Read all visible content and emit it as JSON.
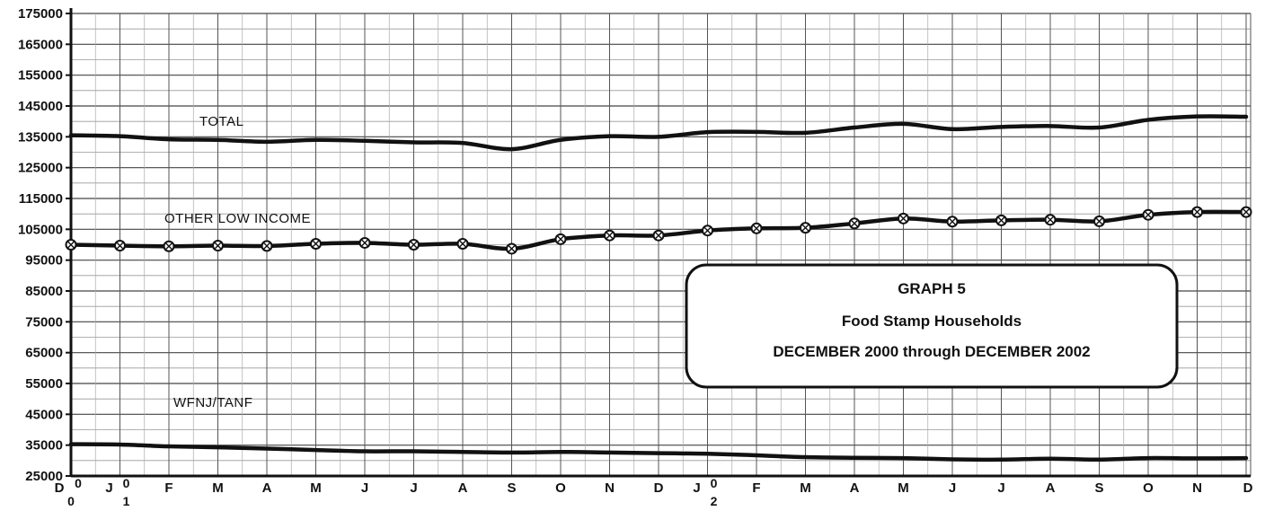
{
  "chart_data": {
    "type": "line",
    "title": "GRAPH 5",
    "subtitle": "Food Stamp Households",
    "period": "DECEMBER 2000 through DECEMBER 2002",
    "ylim": [
      25000,
      175000
    ],
    "yticks": [
      25000,
      35000,
      45000,
      55000,
      65000,
      75000,
      85000,
      95000,
      105000,
      115000,
      125000,
      135000,
      145000,
      155000,
      165000,
      175000
    ],
    "x_labels": [
      "D",
      "J",
      "F",
      "M",
      "A",
      "M",
      "J",
      "J",
      "A",
      "S",
      "O",
      "N",
      "D",
      "J",
      "F",
      "M",
      "A",
      "M",
      "J",
      "J",
      "A",
      "S",
      "O",
      "N",
      "D"
    ],
    "x_year_labels": [
      {
        "index": 0,
        "text": "0"
      },
      {
        "index": 0,
        "text": "0"
      },
      {
        "index": 1,
        "text": "0"
      },
      {
        "index": 1,
        "text": "1"
      },
      {
        "index": 13,
        "text": "0"
      },
      {
        "index": 13,
        "text": "2"
      }
    ],
    "grid": true,
    "series": [
      {
        "name": "TOTAL",
        "marker": false,
        "values": [
          135500,
          135200,
          134200,
          134000,
          133400,
          134000,
          133700,
          133200,
          133000,
          131000,
          134000,
          135200,
          135000,
          136500,
          136600,
          136300,
          138000,
          139200,
          137500,
          138200,
          138500,
          138000,
          140500,
          141600,
          141500
        ]
      },
      {
        "name": "OTHER LOW INCOME",
        "marker": true,
        "values": [
          100000,
          99700,
          99500,
          99700,
          99600,
          100300,
          100600,
          100000,
          100300,
          98700,
          101800,
          103000,
          103000,
          104600,
          105300,
          105500,
          106900,
          108500,
          107500,
          107900,
          108100,
          107600,
          109700,
          110600,
          110600
        ]
      },
      {
        "name": "WFNJ/TANF",
        "marker": false,
        "values": [
          35300,
          35200,
          34600,
          34300,
          33900,
          33400,
          33000,
          33000,
          32800,
          32600,
          32800,
          32600,
          32400,
          32200,
          31700,
          31100,
          30900,
          30800,
          30400,
          30300,
          30600,
          30300,
          30800,
          30700,
          30800
        ]
      }
    ]
  }
}
